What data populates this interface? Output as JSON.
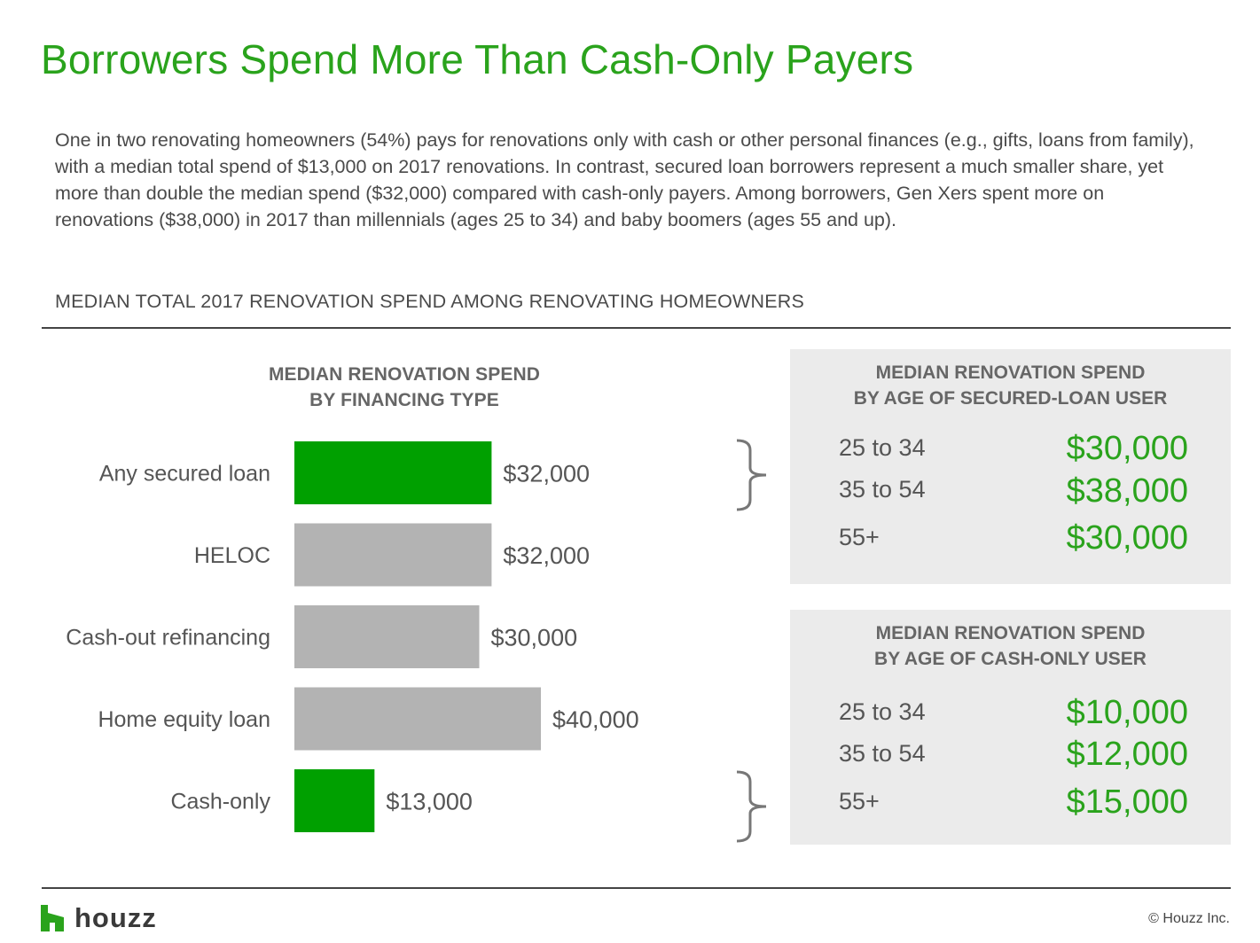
{
  "title": "Borrowers Spend More Than Cash-Only Payers",
  "intro": "One in two renovating homeowners (54%) pays for renovations only with cash or other personal finances (e.g., gifts, loans from family), with a median total spend of $13,000 on 2017 renovations. In contrast, secured loan borrowers represent a much smaller share, yet more than double the median spend ($32,000) compared with cash-only payers. Among borrowers, Gen Xers spent more on renovations ($38,000) in 2017 than millennials (ages 25 to 34) and baby boomers (ages 55 and up).",
  "section_label": "MEDIAN TOTAL 2017 RENOVATION SPEND AMONG RENOVATING HOMEOWNERS",
  "colors": {
    "accent": "#00a000",
    "gray_bar": "#b3b3b3",
    "title_green": "#2aa31c"
  },
  "chart_data": [
    {
      "type": "bar",
      "orientation": "horizontal",
      "title_lines": [
        "MEDIAN RENOVATION SPEND",
        "BY FINANCING TYPE"
      ],
      "categories": [
        "Any secured loan",
        "HELOC",
        "Cash-out refinancing",
        "Home equity loan",
        "Cash-only"
      ],
      "values": [
        32000,
        32000,
        30000,
        40000,
        13000
      ],
      "value_labels": [
        "$32,000",
        "$32,000",
        "$30,000",
        "$40,000",
        "$13,000"
      ],
      "highlight": [
        true,
        false,
        false,
        false,
        true
      ],
      "axis": "none",
      "grid": false
    },
    {
      "type": "table",
      "title_lines": [
        "MEDIAN RENOVATION SPEND",
        "BY AGE OF SECURED-LOAN USER"
      ],
      "rows": [
        {
          "label": "25 to 34",
          "value": 30000,
          "value_label": "$30,000"
        },
        {
          "label": "35 to 54",
          "value": 38000,
          "value_label": "$38,000"
        },
        {
          "label": "55+",
          "value": 30000,
          "value_label": "$30,000"
        }
      ]
    },
    {
      "type": "table",
      "title_lines": [
        "MEDIAN RENOVATION SPEND",
        "BY AGE OF CASH-ONLY USER"
      ],
      "rows": [
        {
          "label": "25 to 34",
          "value": 10000,
          "value_label": "$10,000"
        },
        {
          "label": "35 to 54",
          "value": 12000,
          "value_label": "$12,000"
        },
        {
          "label": "55+",
          "value": 15000,
          "value_label": "$15,000"
        }
      ]
    }
  ],
  "footer": {
    "logo_text": "houzz",
    "copyright": "© Houzz Inc."
  }
}
